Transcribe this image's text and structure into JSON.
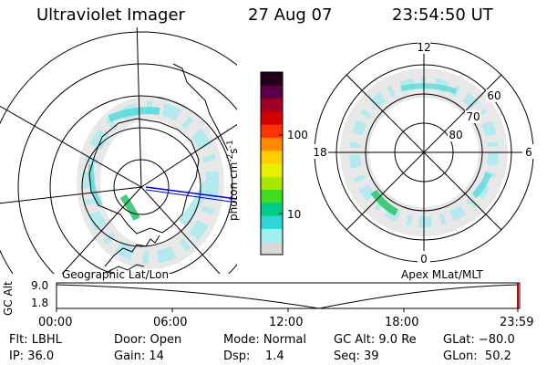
{
  "header": {
    "instrument": "Ultraviolet Imager",
    "date": "27 Aug 07",
    "time": "23:54:50 UT"
  },
  "left_map": {
    "caption": "Geographic Lat/Lon"
  },
  "right_map": {
    "caption": "Apex MLat/MLT",
    "mlt_labels": {
      "top": "12",
      "right": "6",
      "bottom": "0",
      "left": "18"
    },
    "lat_labels": [
      "60",
      "70",
      "80"
    ]
  },
  "colorbar": {
    "unit_label": "photon cm",
    "unit_sup1": "-2",
    "unit_mid": "s",
    "unit_sup2": "-1",
    "tick_labels": [
      "100",
      "10"
    ],
    "colors": [
      "#d8d8d8",
      "#9ef0f0",
      "#2fd6d6",
      "#00cc88",
      "#40dc20",
      "#a8e800",
      "#e8f000",
      "#ffcc00",
      "#ff8800",
      "#ff3300",
      "#d40000",
      "#a00028",
      "#5a0048",
      "#200018"
    ]
  },
  "altitude_strip": {
    "axis_label": "GC Alt",
    "y_top": "9.0",
    "y_bottom": "1.8",
    "time_ticks": [
      "00:00",
      "06:00",
      "12:00",
      "18:00",
      "23:59"
    ]
  },
  "footer": {
    "filter": "Flt: LBHL",
    "ip": "IP: 36.0",
    "door": "Door: Open",
    "gain": "Gain: 14",
    "mode": "Mode: Normal",
    "dsp": "Dsp:    1.4",
    "gc_alt": "GC Alt: 9.0 Re",
    "seq": "Seq: 39",
    "glat": "GLat: −80.0",
    "glon": "GLon:  50.2"
  },
  "colors": {
    "aurora_light": "#aeeaf0",
    "aurora_mid": "#4dd8d8",
    "aurora_green": "#30c870",
    "trajectory": "#0000cc",
    "end_marker": "#c00000"
  }
}
